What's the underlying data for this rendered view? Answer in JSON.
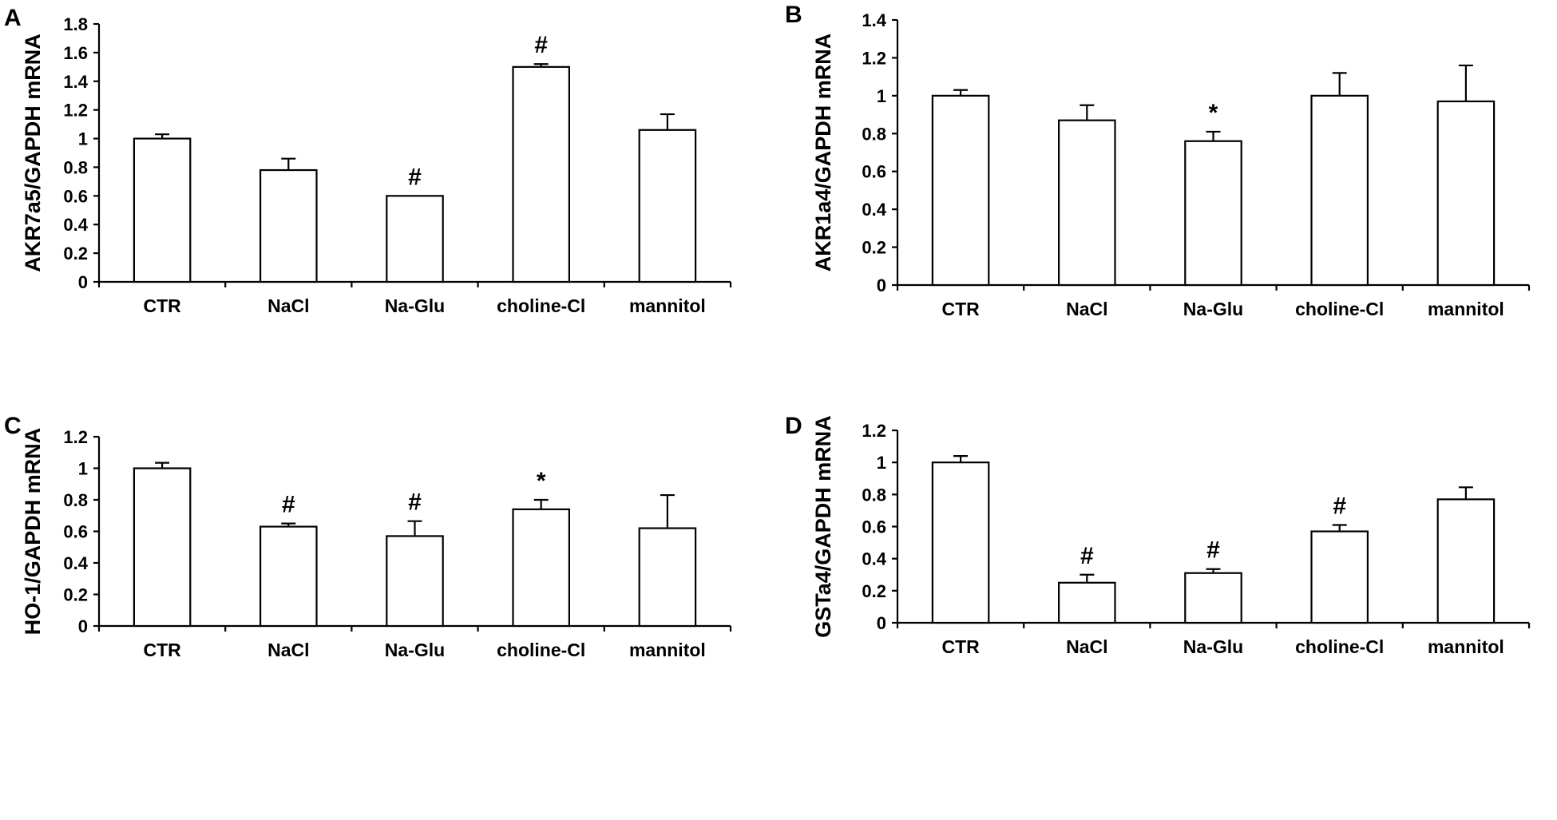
{
  "chart_data": [
    {
      "panel": "A",
      "type": "bar",
      "ylabel": "AKR7a5/GAPDH mRNA",
      "ylim": [
        0,
        1.8
      ],
      "yticks": [
        "0",
        "0.2",
        "0.4",
        "0.6",
        "0.8",
        "1",
        "1.2",
        "1.4",
        "1.6",
        "1.8"
      ],
      "categories": [
        "CTR",
        "NaCl",
        "Na-Glu",
        "choline-Cl",
        "mannitol"
      ],
      "values": [
        1.0,
        0.78,
        0.6,
        1.5,
        1.06
      ],
      "errors": [
        0.03,
        0.08,
        0.0,
        0.02,
        0.11
      ],
      "annotations": [
        "",
        "",
        "#",
        "#",
        ""
      ]
    },
    {
      "panel": "B",
      "type": "bar",
      "ylabel": "AKR1a4/GAPDH mRNA",
      "ylim": [
        0,
        1.4
      ],
      "yticks": [
        "0",
        "0.2",
        "0.4",
        "0.6",
        "0.8",
        "1",
        "1.2",
        "1.4"
      ],
      "categories": [
        "CTR",
        "NaCl",
        "Na-Glu",
        "choline-Cl",
        "mannitol"
      ],
      "values": [
        1.0,
        0.87,
        0.76,
        1.0,
        0.97
      ],
      "errors": [
        0.03,
        0.08,
        0.05,
        0.12,
        0.19
      ],
      "annotations": [
        "",
        "",
        "*",
        "",
        ""
      ]
    },
    {
      "panel": "C",
      "type": "bar",
      "ylabel": "HO-1/GAPDH mRNA",
      "ylim": [
        0,
        1.2
      ],
      "yticks": [
        "0",
        "0.2",
        "0.4",
        "0.6",
        "0.8",
        "1",
        "1.2"
      ],
      "categories": [
        "CTR",
        "NaCl",
        "Na-Glu",
        "choline-Cl",
        "mannitol"
      ],
      "values": [
        1.0,
        0.63,
        0.57,
        0.74,
        0.62
      ],
      "errors": [
        0.035,
        0.02,
        0.095,
        0.06,
        0.21
      ],
      "annotations": [
        "",
        "#",
        "#",
        "*",
        ""
      ]
    },
    {
      "panel": "D",
      "type": "bar",
      "ylabel": "GSTa4/GAPDH mRNA",
      "ylim": [
        0,
        1.2
      ],
      "yticks": [
        "0",
        "0.2",
        "0.4",
        "0.6",
        "0.8",
        "1",
        "1.2"
      ],
      "categories": [
        "CTR",
        "NaCl",
        "Na-Glu",
        "choline-Cl",
        "mannitol"
      ],
      "values": [
        1.0,
        0.25,
        0.31,
        0.57,
        0.77
      ],
      "errors": [
        0.04,
        0.05,
        0.025,
        0.04,
        0.075
      ],
      "annotations": [
        "",
        "#",
        "#",
        "#",
        ""
      ]
    }
  ]
}
